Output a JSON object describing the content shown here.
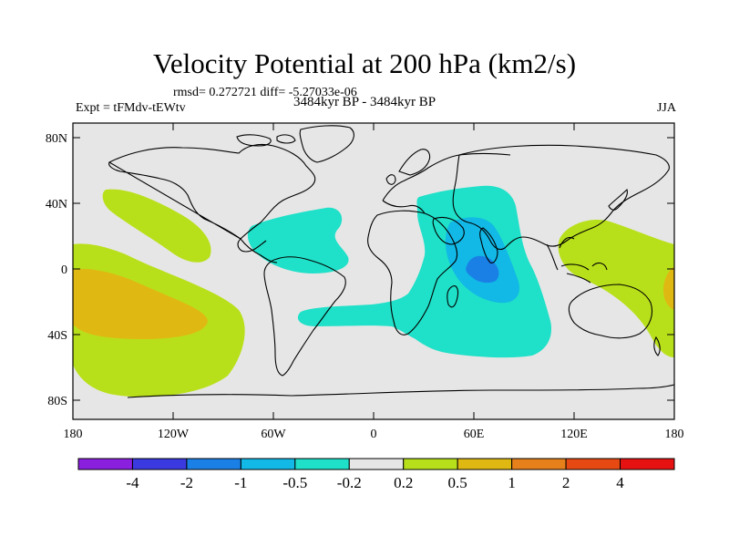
{
  "title": "Velocity Potential at 200 hPa (km2/s)",
  "stats": "rmsd= 0.272721  diff= -5.27033e-06",
  "experiment": "Expt = tFMdv-tEWtv",
  "period": "3484kyr BP - 3484kyr BP",
  "season": "JJA",
  "latitude_labels": [
    "80N",
    "40N",
    "0",
    "40S",
    "80S"
  ],
  "longitude_labels": [
    "180",
    "120W",
    "60W",
    "0",
    "60E",
    "120E",
    "180"
  ],
  "colorbar": {
    "labels": [
      "-4",
      "-2",
      "-1",
      "-0.5",
      "-0.2",
      "0.2",
      "0.5",
      "1",
      "2",
      "4"
    ],
    "colors": [
      "#8a1fe0",
      "#3a3ae0",
      "#1a80e6",
      "#12b8e6",
      "#1fe0c8",
      "#e6e6e6",
      "#b8e01a",
      "#e0b812",
      "#e6801a",
      "#e64a12",
      "#e61212"
    ]
  },
  "colors": {
    "ocean_background": "#e6e6e6",
    "level_pos_0_2": "#b8e01a",
    "level_pos_0_5": "#e0b812",
    "level_neg_0_2": "#1fe0c8",
    "level_neg_0_5": "#12b8e6",
    "level_neg_1": "#1a80e6"
  }
}
